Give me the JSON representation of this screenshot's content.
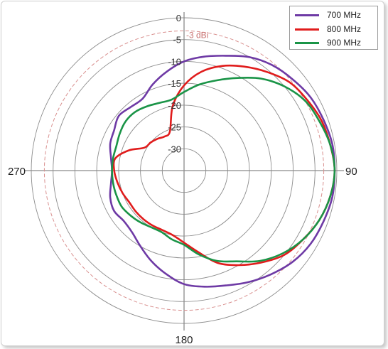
{
  "chart_data": {
    "type": "polar-line",
    "r_ticks": [
      "0",
      "-5",
      "-10",
      "-15",
      "-20",
      "-25",
      "-30"
    ],
    "r_range": [
      -35,
      0
    ],
    "angle_labels": [
      "90",
      "180",
      "270"
    ],
    "reference_line": {
      "value": -3,
      "label": "-3 dBi",
      "color": "#d9908f"
    },
    "grid": true,
    "legend_position": "top-right",
    "series": [
      {
        "name": "700 MHz",
        "color": "#6e3aa5",
        "angles": [
          0,
          10,
          20,
          30,
          40,
          50,
          60,
          70,
          80,
          90,
          100,
          110,
          120,
          130,
          140,
          150,
          160,
          170,
          180,
          190,
          200,
          210,
          220,
          230,
          240,
          250,
          260,
          270,
          280,
          290,
          300,
          310,
          320,
          330,
          340,
          350,
          360
        ],
        "gain_dbi": [
          -10.0,
          -8.5,
          -7.0,
          -5.0,
          -3.5,
          -2.5,
          -1.5,
          -1.0,
          -0.5,
          -0.5,
          -0.5,
          -1.0,
          -1.5,
          -2.5,
          -4.0,
          -5.5,
          -7.0,
          -8.0,
          -9.0,
          -11.0,
          -13.0,
          -15.0,
          -16.5,
          -17.0,
          -16.5,
          -17.0,
          -18.0,
          -18.5,
          -18.0,
          -17.0,
          -16.5,
          -15.5,
          -16.0,
          -16.0,
          -14.0,
          -12.0,
          -10.0
        ]
      },
      {
        "name": "800 MHz",
        "color": "#e01c1c",
        "angles": [
          0,
          10,
          20,
          30,
          40,
          50,
          60,
          70,
          80,
          90,
          100,
          110,
          120,
          130,
          140,
          150,
          160,
          170,
          180,
          190,
          200,
          210,
          220,
          230,
          240,
          250,
          260,
          270,
          280,
          290,
          300,
          310,
          320,
          330,
          340,
          350,
          360
        ],
        "gain_dbi": [
          -15.5,
          -12.0,
          -9.5,
          -7.5,
          -5.5,
          -3.5,
          -2.5,
          -1.5,
          -1.0,
          -0.5,
          -1.0,
          -2.0,
          -3.5,
          -5.0,
          -7.5,
          -10.0,
          -12.5,
          -16.0,
          -18.5,
          -20.0,
          -20.5,
          -20.5,
          -20.5,
          -20.5,
          -20.5,
          -20.0,
          -19.5,
          -19.0,
          -19.0,
          -21.5,
          -24.5,
          -25.0,
          -25.5,
          -26.0,
          -25.5,
          -20.0,
          -15.5
        ]
      },
      {
        "name": "900 MHz",
        "color": "#1a9447",
        "angles": [
          0,
          10,
          20,
          30,
          40,
          50,
          60,
          70,
          80,
          90,
          100,
          110,
          120,
          130,
          140,
          150,
          160,
          170,
          180,
          190,
          200,
          210,
          220,
          230,
          240,
          250,
          260,
          270,
          280,
          290,
          300,
          310,
          320,
          330,
          340,
          350,
          360
        ],
        "gain_dbi": [
          -17.0,
          -15.0,
          -13.0,
          -10.5,
          -7.5,
          -5.0,
          -3.0,
          -2.0,
          -1.0,
          -0.5,
          -1.0,
          -2.0,
          -3.5,
          -5.5,
          -8.0,
          -11.0,
          -13.0,
          -15.5,
          -18.0,
          -19.0,
          -20.0,
          -20.0,
          -19.5,
          -19.0,
          -18.5,
          -18.5,
          -18.5,
          -18.5,
          -18.5,
          -18.5,
          -18.0,
          -17.5,
          -17.5,
          -18.0,
          -18.5,
          -18.5,
          -17.0
        ]
      }
    ]
  }
}
